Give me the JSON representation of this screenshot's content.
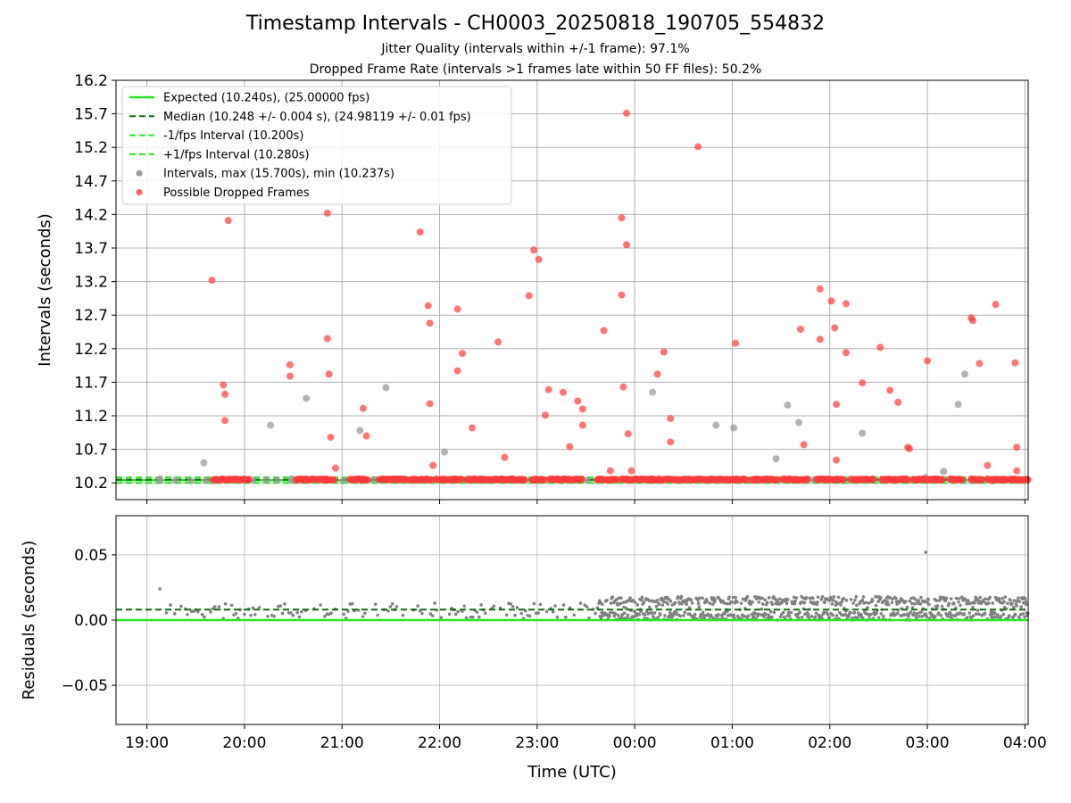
{
  "title": "Timestamp Intervals - CH0003_20250818_190705_554832",
  "subtitle_1": "Jitter Quality (intervals within +/-1 frame): 97.1%",
  "subtitle_2": "Dropped Frame Rate (intervals >1 frames late within 50 FF files): 50.2%",
  "colors": {
    "expected": "#22e81e",
    "median": "#0b6b0b",
    "fps_band": "#22e81e",
    "intervals": "#9a9a9a",
    "dropped": "#ff3b3b",
    "residuals": "#808080",
    "grid": "#b0b0b0"
  },
  "chart_data": [
    {
      "type": "scatter",
      "name": "intervals",
      "ylabel": "Intervals (seconds)",
      "xlabel": "",
      "xlim": [
        "18:41",
        "04:02"
      ],
      "ylim": [
        9.95,
        16.2
      ],
      "yticks": [
        "10.2",
        "10.7",
        "11.2",
        "11.7",
        "12.2",
        "12.7",
        "13.2",
        "13.7",
        "14.2",
        "14.7",
        "15.2",
        "15.7",
        "16.2"
      ],
      "grid": true,
      "legend_position": "upper left",
      "legend": [
        {
          "key": "expected",
          "label": "Expected (10.240s), (25.00000 fps)",
          "style": "solid-line"
        },
        {
          "key": "median",
          "label": "Median (10.248 +/- 0.004 s), (24.98119 +/- 0.01 fps)",
          "style": "dashed-line"
        },
        {
          "key": "minus",
          "label": "-1/fps Interval (10.200s)",
          "style": "dashed-light"
        },
        {
          "key": "plus",
          "label": "+1/fps Interval (10.280s)",
          "style": "dashed-light"
        },
        {
          "key": "intervals",
          "label": "Intervals, max (15.700s), min (10.237s)",
          "style": "gray-dot"
        },
        {
          "key": "dropped",
          "label": "Possible Dropped Frames",
          "style": "red-dot"
        }
      ],
      "reference_lines": {
        "expected": 10.24,
        "median": 10.248,
        "minus_1_fps": 10.2,
        "plus_1_fps": 10.28
      },
      "dropped_frame_clusters": [
        [
          "19:41",
          "20:03"
        ],
        [
          "20:32",
          "20:43"
        ],
        [
          "20:45",
          "20:55"
        ],
        [
          "21:05",
          "21:16"
        ],
        [
          "21:23",
          "21:40"
        ],
        [
          "21:42",
          "21:55"
        ],
        [
          "21:58",
          "22:14"
        ],
        [
          "22:17",
          "22:36"
        ],
        [
          "22:37",
          "22:53"
        ],
        [
          "22:57",
          "23:05"
        ],
        [
          "23:08",
          "23:20"
        ],
        [
          "23:22",
          "23:28"
        ],
        [
          "23:37",
          "23:49"
        ],
        [
          "23:52",
          "00:05"
        ],
        [
          "00:06",
          "00:22"
        ],
        [
          "00:23",
          "00:37"
        ],
        [
          "00:38",
          "00:52"
        ],
        [
          "00:53",
          "01:09"
        ],
        [
          "01:12",
          "01:28"
        ],
        [
          "01:31",
          "01:47"
        ],
        [
          "01:52",
          "02:09"
        ],
        [
          "02:13",
          "02:27"
        ],
        [
          "02:32",
          "02:49"
        ],
        [
          "02:52",
          "03:10"
        ],
        [
          "03:14",
          "03:22"
        ],
        [
          "03:27",
          "03:34"
        ],
        [
          "03:37",
          "03:49"
        ],
        [
          "03:51",
          "04:02"
        ]
      ],
      "dropped_points": [
        {
          "x": "19:40",
          "y": 13.22
        },
        {
          "x": "19:50",
          "y": 14.11
        },
        {
          "x": "19:47",
          "y": 11.66
        },
        {
          "x": "19:48",
          "y": 11.52
        },
        {
          "x": "19:48",
          "y": 11.13
        },
        {
          "x": "20:28",
          "y": 11.96
        },
        {
          "x": "20:28",
          "y": 11.79
        },
        {
          "x": "20:51",
          "y": 14.22
        },
        {
          "x": "20:51",
          "y": 12.35
        },
        {
          "x": "20:52",
          "y": 11.82
        },
        {
          "x": "20:53",
          "y": 10.88
        },
        {
          "x": "20:56",
          "y": 10.42
        },
        {
          "x": "21:13",
          "y": 11.31
        },
        {
          "x": "21:15",
          "y": 10.9
        },
        {
          "x": "21:48",
          "y": 13.94
        },
        {
          "x": "21:53",
          "y": 12.84
        },
        {
          "x": "21:54",
          "y": 12.58
        },
        {
          "x": "21:54",
          "y": 11.38
        },
        {
          "x": "21:56",
          "y": 10.46
        },
        {
          "x": "22:11",
          "y": 12.79
        },
        {
          "x": "22:11",
          "y": 11.87
        },
        {
          "x": "22:14",
          "y": 12.13
        },
        {
          "x": "22:20",
          "y": 11.02
        },
        {
          "x": "22:36",
          "y": 12.3
        },
        {
          "x": "22:40",
          "y": 10.58
        },
        {
          "x": "22:55",
          "y": 12.99
        },
        {
          "x": "22:58",
          "y": 13.67
        },
        {
          "x": "23:01",
          "y": 13.53
        },
        {
          "x": "23:05",
          "y": 11.21
        },
        {
          "x": "23:07",
          "y": 11.59
        },
        {
          "x": "23:16",
          "y": 11.55
        },
        {
          "x": "23:20",
          "y": 10.74
        },
        {
          "x": "23:25",
          "y": 11.42
        },
        {
          "x": "23:28",
          "y": 11.3
        },
        {
          "x": "23:28",
          "y": 11.06
        },
        {
          "x": "23:41",
          "y": 12.47
        },
        {
          "x": "23:45",
          "y": 10.38
        },
        {
          "x": "23:52",
          "y": 14.15
        },
        {
          "x": "23:52",
          "y": 13.0
        },
        {
          "x": "23:53",
          "y": 11.63
        },
        {
          "x": "23:55",
          "y": 15.71
        },
        {
          "x": "23:55",
          "y": 13.75
        },
        {
          "x": "23:56",
          "y": 10.93
        },
        {
          "x": "23:58",
          "y": 10.38
        },
        {
          "x": "00:14",
          "y": 11.82
        },
        {
          "x": "00:18",
          "y": 12.15
        },
        {
          "x": "00:22",
          "y": 11.16
        },
        {
          "x": "00:22",
          "y": 10.81
        },
        {
          "x": "00:39",
          "y": 15.21
        },
        {
          "x": "01:02",
          "y": 12.28
        },
        {
          "x": "01:42",
          "y": 12.49
        },
        {
          "x": "01:44",
          "y": 10.77
        },
        {
          "x": "01:54",
          "y": 13.09
        },
        {
          "x": "01:54",
          "y": 12.34
        },
        {
          "x": "02:01",
          "y": 12.91
        },
        {
          "x": "02:03",
          "y": 12.51
        },
        {
          "x": "02:04",
          "y": 11.37
        },
        {
          "x": "02:04",
          "y": 10.54
        },
        {
          "x": "02:10",
          "y": 12.87
        },
        {
          "x": "02:10",
          "y": 12.14
        },
        {
          "x": "02:20",
          "y": 11.69
        },
        {
          "x": "02:31",
          "y": 12.22
        },
        {
          "x": "02:37",
          "y": 11.58
        },
        {
          "x": "02:42",
          "y": 11.4
        },
        {
          "x": "02:48",
          "y": 10.73
        },
        {
          "x": "02:49",
          "y": 10.71
        },
        {
          "x": "03:00",
          "y": 12.02
        },
        {
          "x": "03:27",
          "y": 12.66
        },
        {
          "x": "03:28",
          "y": 12.62
        },
        {
          "x": "03:32",
          "y": 11.98
        },
        {
          "x": "03:37",
          "y": 10.46
        },
        {
          "x": "03:42",
          "y": 12.86
        },
        {
          "x": "03:54",
          "y": 11.99
        },
        {
          "x": "03:55",
          "y": 10.73
        },
        {
          "x": "03:55",
          "y": 10.38
        }
      ],
      "interval_points": [
        {
          "x": "19:08",
          "y": 10.26
        },
        {
          "x": "19:35",
          "y": 10.5
        },
        {
          "x": "20:16",
          "y": 11.06
        },
        {
          "x": "20:29",
          "y": 10.26
        },
        {
          "x": "20:38",
          "y": 11.46
        },
        {
          "x": "21:11",
          "y": 10.98
        },
        {
          "x": "21:27",
          "y": 11.62
        },
        {
          "x": "22:03",
          "y": 10.66
        },
        {
          "x": "00:11",
          "y": 11.55
        },
        {
          "x": "00:50",
          "y": 11.06
        },
        {
          "x": "01:01",
          "y": 11.02
        },
        {
          "x": "01:27",
          "y": 10.56
        },
        {
          "x": "01:34",
          "y": 11.36
        },
        {
          "x": "01:41",
          "y": 11.1
        },
        {
          "x": "02:20",
          "y": 10.94
        },
        {
          "x": "03:10",
          "y": 10.37
        },
        {
          "x": "03:19",
          "y": 11.37
        },
        {
          "x": "03:23",
          "y": 11.82
        },
        {
          "x": "02:59",
          "y": 10.28
        }
      ]
    },
    {
      "type": "scatter",
      "name": "residuals",
      "xlabel": "Time (UTC)",
      "ylabel": "Residuals (seconds)",
      "xlim": [
        "18:41",
        "04:02"
      ],
      "ylim": [
        -0.08,
        0.08
      ],
      "xticks": [
        "19:00",
        "20:00",
        "21:00",
        "22:00",
        "23:00",
        "00:00",
        "01:00",
        "02:00",
        "03:00",
        "04:00"
      ],
      "yticks": [
        "0.05",
        "0.00",
        "−0.05"
      ],
      "grid": true,
      "reference_lines": {
        "zero": 0.0,
        "median_offset": 0.008
      },
      "segments": [
        {
          "x_range": [
            "19:08",
            "23:38"
          ],
          "y_range": [
            -0.002,
            0.014
          ],
          "density": "sparse"
        },
        {
          "x_range": [
            "23:38",
            "04:02"
          ],
          "y_range": [
            0.0,
            0.018
          ],
          "density": "dense"
        }
      ],
      "outliers": [
        {
          "x": "19:08",
          "y": 0.024
        },
        {
          "x": "02:59",
          "y": 0.052
        }
      ]
    }
  ]
}
